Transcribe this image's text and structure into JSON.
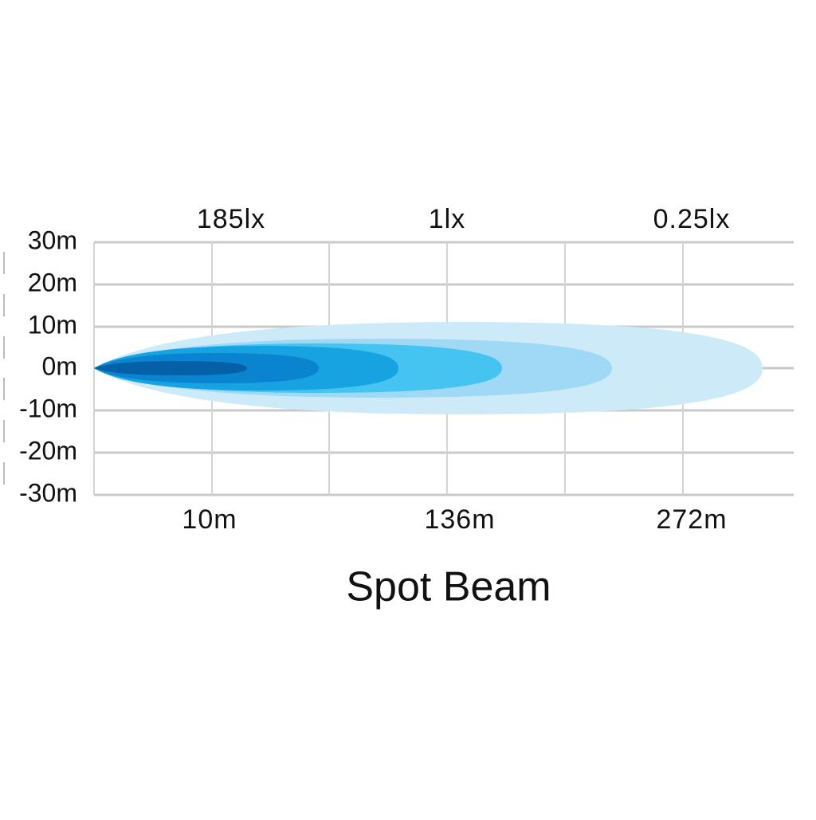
{
  "title": "Spot Beam",
  "lux_labels": [
    "185lx",
    "1lx",
    "0.25lx"
  ],
  "distance_labels": [
    "10m",
    "136m",
    "272m"
  ],
  "width_labels": [
    "30m",
    "20m",
    "10m",
    "0m",
    "-10m",
    "-20m",
    "-30m"
  ]
}
